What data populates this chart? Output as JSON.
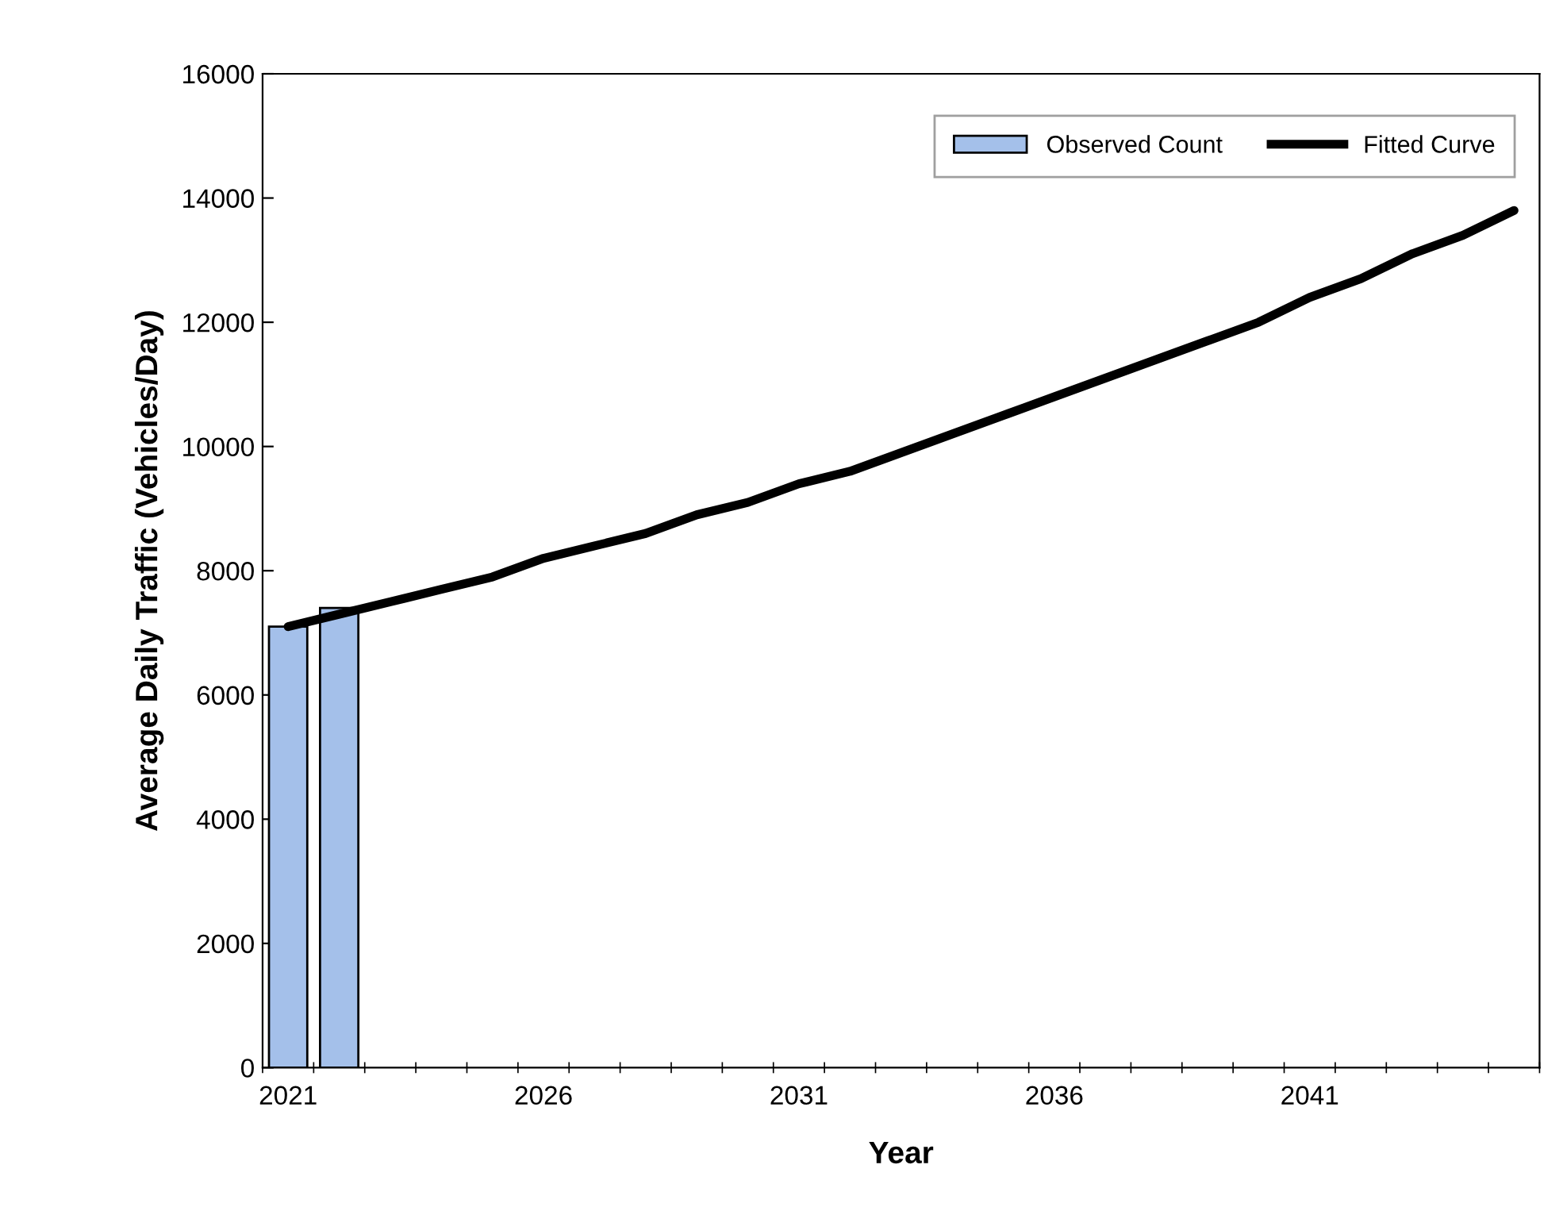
{
  "chart_data": {
    "type": "bar",
    "xlabel": "Year",
    "ylabel": "Average Daily Traffic (Vehicles/Day)",
    "categories": [
      "2021",
      null,
      null,
      null,
      null,
      "2026",
      null,
      null,
      null,
      null,
      "2031",
      null,
      null,
      null,
      null,
      "2036",
      null,
      null,
      null,
      null,
      "2041",
      null,
      null,
      null,
      null
    ],
    "series": [
      {
        "name": "Observed Count",
        "color": "#a4c0ea",
        "values": [
          7100,
          7400,
          null,
          null,
          null,
          null,
          null,
          null,
          null,
          null,
          null,
          null,
          null,
          null,
          null,
          null,
          null,
          null,
          null,
          null,
          null,
          null,
          null,
          null,
          null
        ]
      },
      {
        "name": "Fitted Curve",
        "type": "line",
        "color": "#000000",
        "values": [
          7100,
          7300,
          7500,
          7700,
          7900,
          8200,
          8400,
          8600,
          8900,
          9100,
          9400,
          9600,
          9900,
          10200,
          10500,
          10800,
          11100,
          11400,
          11700,
          12000,
          12400,
          12700,
          13100,
          13400,
          13800
        ]
      }
    ],
    "ylim": [
      0,
      16000
    ],
    "yticks": [
      0,
      2000,
      4000,
      6000,
      8000,
      10000,
      12000,
      14000,
      16000
    ],
    "grid": false,
    "legend": "top right",
    "marker": "none",
    "line_style": "solid"
  }
}
